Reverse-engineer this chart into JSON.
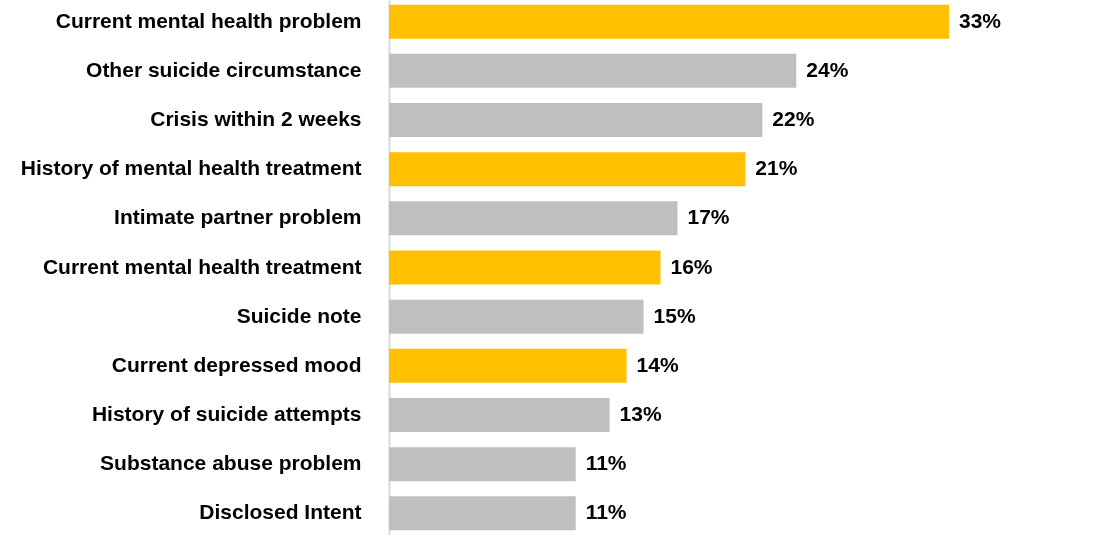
{
  "chart_data": {
    "type": "bar",
    "orientation": "horizontal",
    "categories": [
      "Current mental health problem",
      "Other suicide circumstance",
      "Crisis within 2 weeks",
      "History of mental health treatment",
      "Intimate partner problem",
      "Current mental health treatment",
      "Suicide note",
      "Current depressed mood",
      "History of suicide attempts",
      "Substance abuse problem",
      "Disclosed Intent"
    ],
    "values": [
      33,
      24,
      22,
      21,
      17,
      16,
      15,
      14,
      13,
      11,
      11
    ],
    "colors": [
      "#ffc000",
      "#bfbfbf",
      "#bfbfbf",
      "#ffc000",
      "#bfbfbf",
      "#ffc000",
      "#bfbfbf",
      "#ffc000",
      "#bfbfbf",
      "#bfbfbf",
      "#bfbfbf"
    ],
    "value_labels": [
      "33%",
      "24%",
      "22%",
      "21%",
      "17%",
      "16%",
      "15%",
      "14%",
      "13%",
      "11%",
      "11%"
    ]
  }
}
